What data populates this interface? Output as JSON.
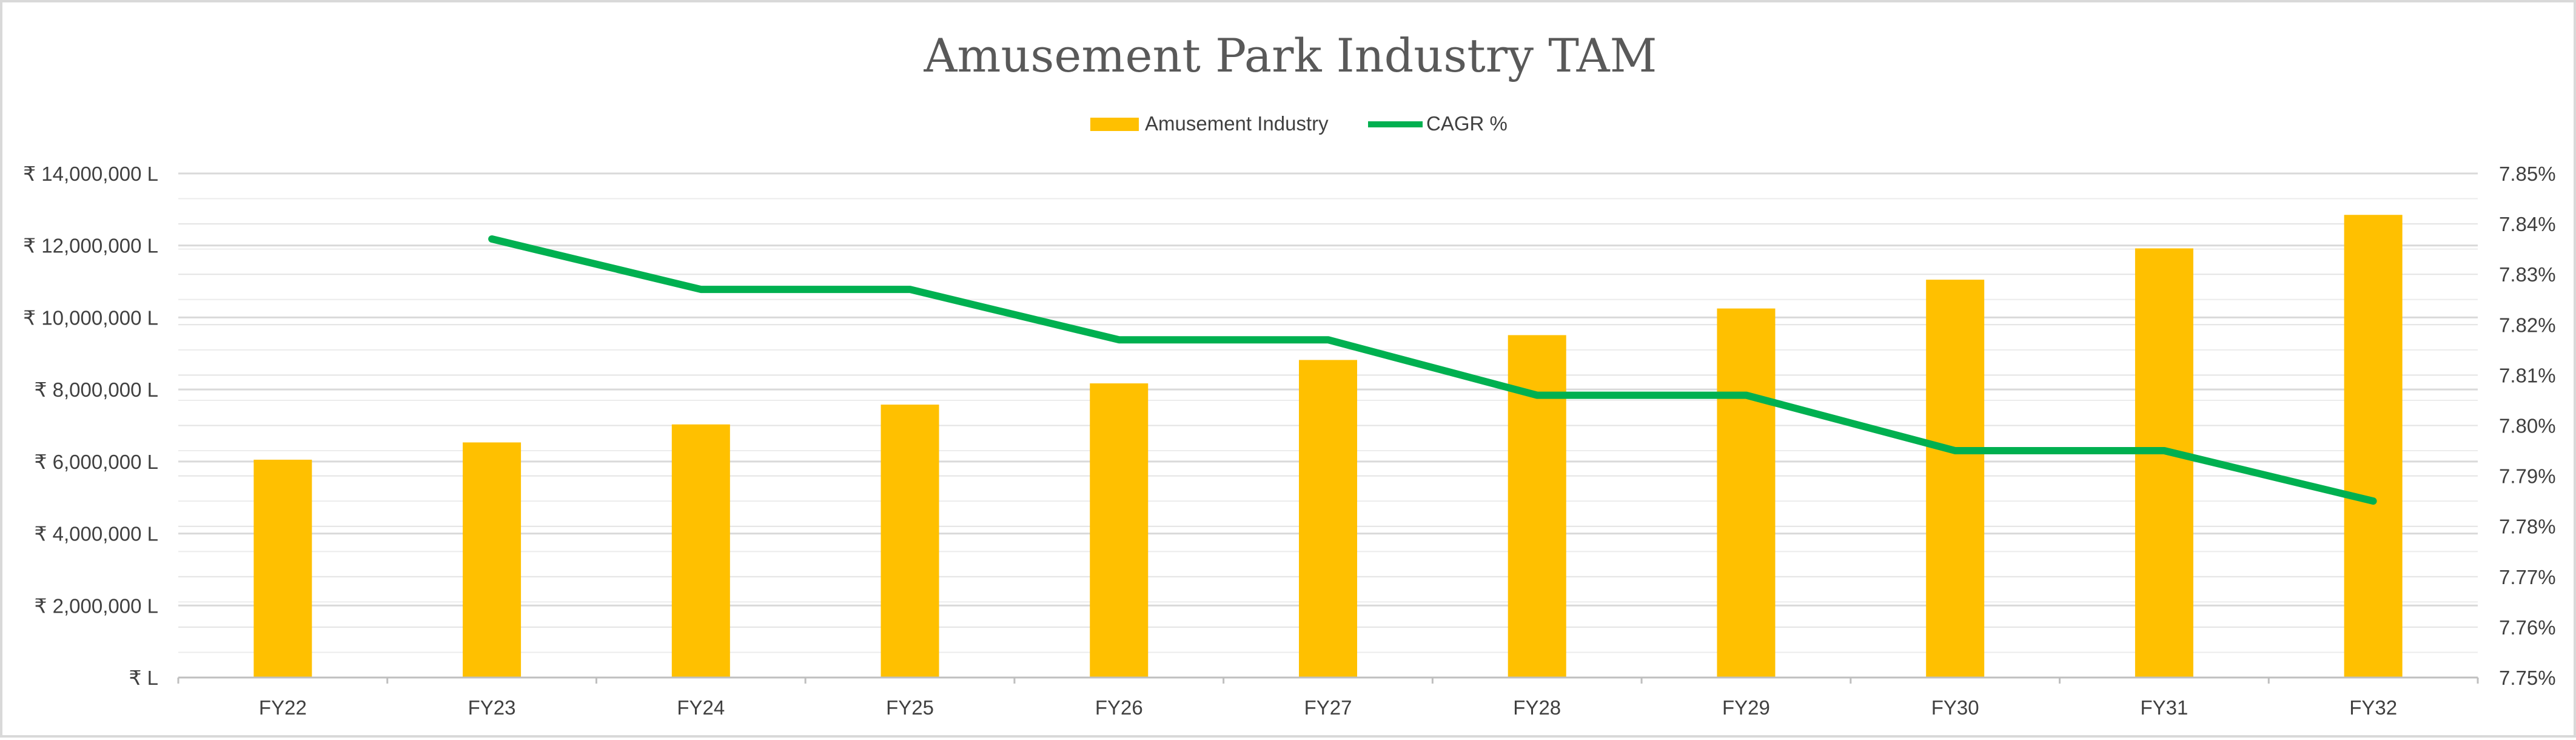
{
  "chart_data": {
    "type": "bar",
    "title": "Amusement Park Industry TAM",
    "categories": [
      "FY22",
      "FY23",
      "FY24",
      "FY25",
      "FY26",
      "FY27",
      "FY28",
      "FY29",
      "FY30",
      "FY31",
      "FY32"
    ],
    "series": [
      {
        "name": "Amusement Industry",
        "type": "bar",
        "axis": "left",
        "color": "#FFC000",
        "values": [
          6050000,
          6530000,
          7030000,
          7580000,
          8170000,
          8820000,
          9510000,
          10250000,
          11050000,
          11920000,
          12850000
        ]
      },
      {
        "name": "CAGR %",
        "type": "line",
        "axis": "right",
        "color": "#00B050",
        "values": [
          null,
          7.837,
          7.827,
          7.827,
          7.817,
          7.817,
          7.806,
          7.806,
          7.795,
          7.795,
          7.785
        ]
      }
    ],
    "y_left": {
      "min": 0,
      "max": 14000000,
      "tick_labels": [
        "₹ L",
        "₹ 2,000,000 L",
        "₹ 4,000,000 L",
        "₹ 6,000,000 L",
        "₹ 8,000,000 L",
        "₹ 10,000,000 L",
        "₹ 12,000,000 L",
        "₹ 14,000,000 L"
      ]
    },
    "y_right": {
      "min": 7.75,
      "max": 7.85,
      "tick_labels": [
        "7.75%",
        "7.76%",
        "7.77%",
        "7.78%",
        "7.79%",
        "7.80%",
        "7.81%",
        "7.82%",
        "7.83%",
        "7.84%",
        "7.85%"
      ]
    },
    "legend_position": "top-center",
    "grid": true
  }
}
